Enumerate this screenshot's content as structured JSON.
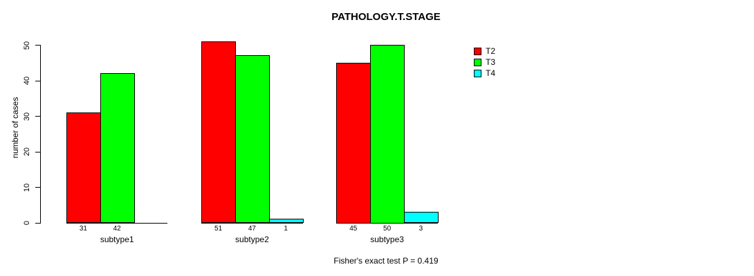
{
  "chart_data": {
    "type": "bar",
    "title": "PATHOLOGY.T.STAGE",
    "ylabel": "number of cases",
    "xlabel": "",
    "footnote": "Fisher's exact test P = 0.419",
    "categories": [
      "subtype1",
      "subtype2",
      "subtype3"
    ],
    "series": [
      {
        "name": "T2",
        "color": "#ff0000",
        "values": [
          31,
          51,
          45
        ]
      },
      {
        "name": "T3",
        "color": "#00ff00",
        "values": [
          42,
          47,
          50
        ]
      },
      {
        "name": "T4",
        "color": "#00ffff",
        "values": [
          0,
          1,
          3
        ]
      }
    ],
    "bar_value_labels": {
      "shown": true,
      "hide_zero": true
    },
    "ylim": [
      0,
      50
    ],
    "yticks": [
      0,
      10,
      20,
      30,
      40,
      50
    ],
    "grid": false,
    "legend_position": "right",
    "colors": {
      "background": "#ffffff",
      "axis": "#000000",
      "text": "#000000"
    }
  }
}
